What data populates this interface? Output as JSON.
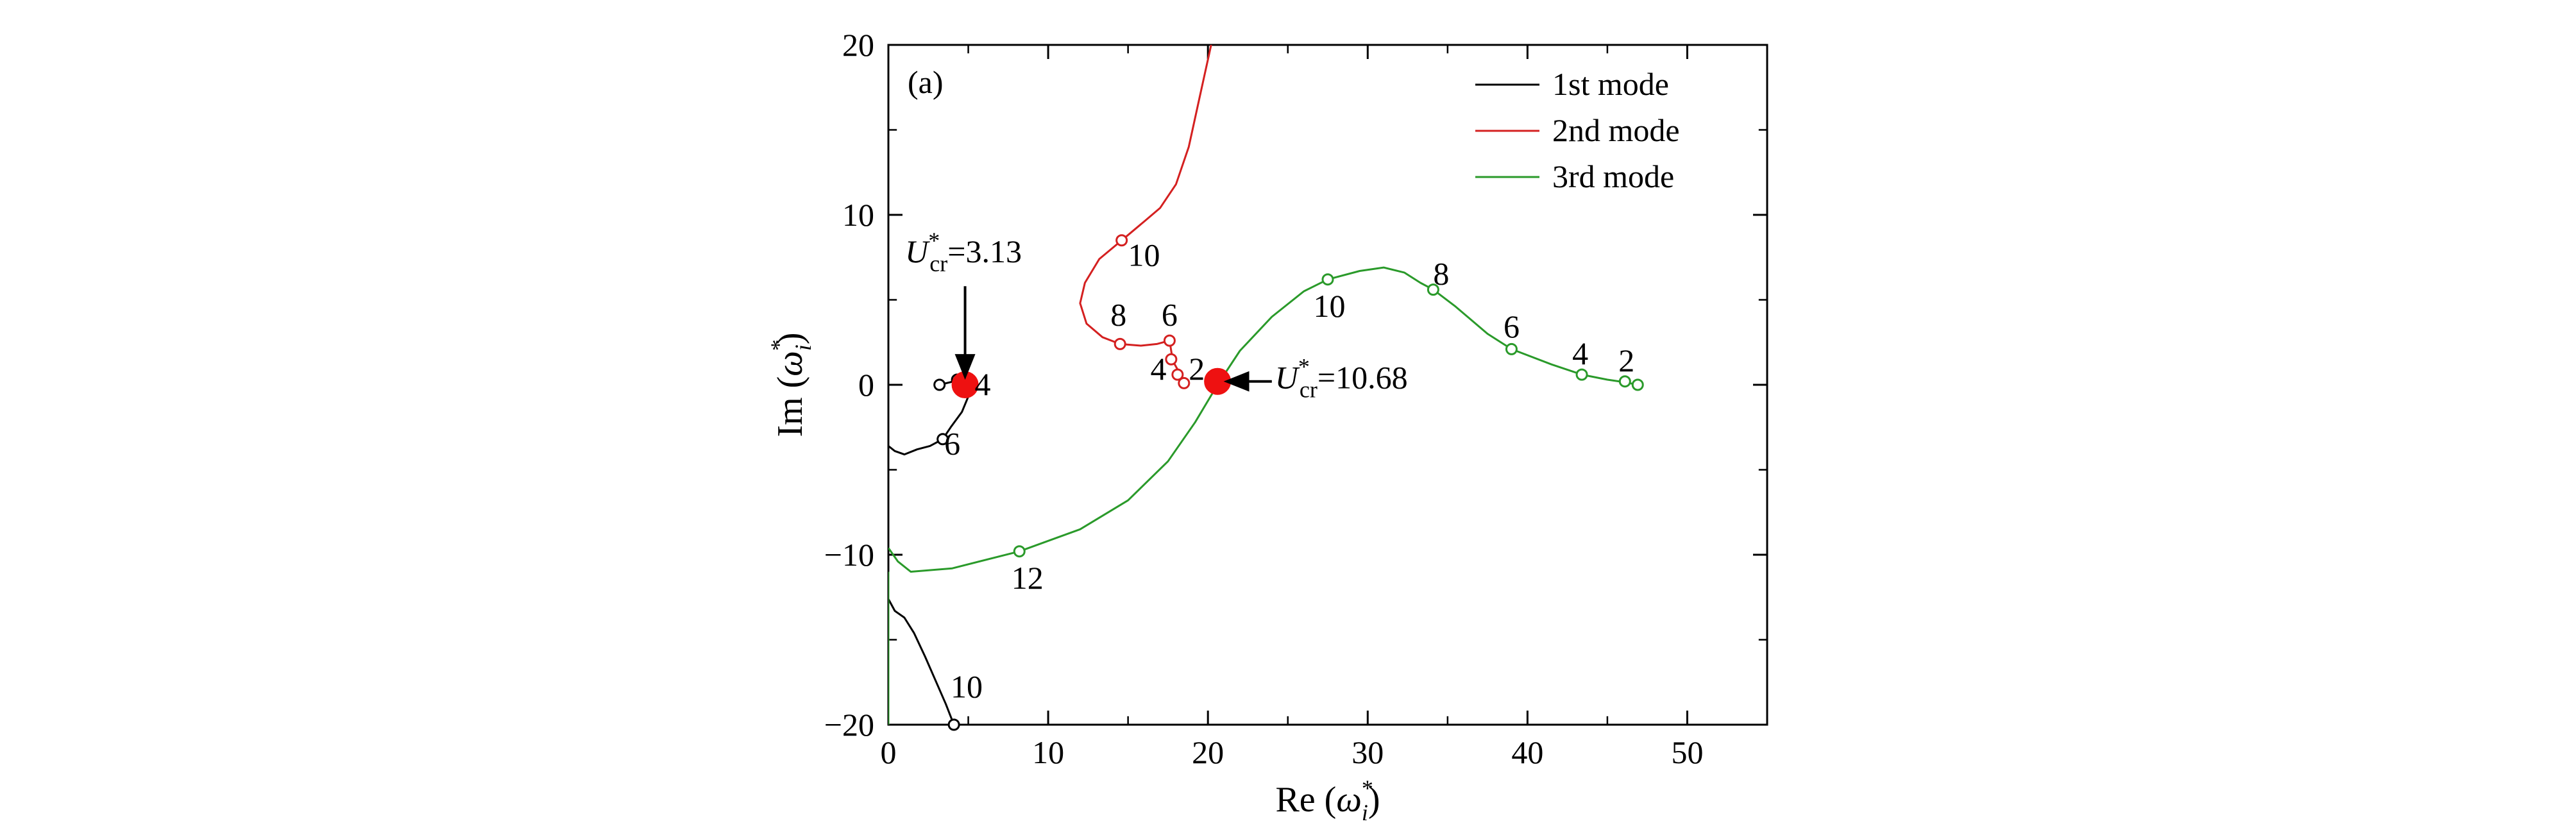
{
  "chart_data": {
    "type": "line",
    "panel_label": "(a)",
    "xlabel": {
      "prefix": "Re (",
      "sym": "ω",
      "sup": "*",
      "sub": "i",
      "suffix": ")"
    },
    "ylabel": {
      "prefix": "Im (",
      "sym": "ω",
      "sup": "*",
      "sub": "i",
      "suffix": ")"
    },
    "xlim": [
      0,
      55
    ],
    "ylim": [
      -20,
      20
    ],
    "xticks": [
      0,
      10,
      20,
      30,
      40,
      50
    ],
    "yticks": [
      -20,
      -10,
      0,
      10,
      20
    ],
    "xtick_labels": [
      "0",
      "10",
      "20",
      "30",
      "40",
      "50"
    ],
    "ytick_labels": [
      "−20",
      "−10",
      "0",
      "10",
      "20"
    ],
    "legend_position": "top-right",
    "series": [
      {
        "name": "1st mode",
        "color": "#000000",
        "segments": [
          [
            [
              3.2,
              0.0
            ],
            [
              4.3,
              0.25
            ],
            [
              4.8,
              0.1
            ],
            [
              5.0,
              -0.7
            ],
            [
              4.6,
              -1.6
            ],
            [
              3.9,
              -2.5
            ],
            [
              3.4,
              -3.2
            ],
            [
              2.6,
              -3.6
            ],
            [
              1.8,
              -3.8
            ],
            [
              1.0,
              -4.1
            ],
            [
              0.4,
              -3.9
            ],
            [
              0.0,
              -3.6
            ]
          ],
          [
            [
              0.0,
              -12.6
            ],
            [
              0.4,
              -13.3
            ],
            [
              1.0,
              -13.7
            ],
            [
              1.6,
              -14.6
            ],
            [
              2.3,
              -16.0
            ],
            [
              3.0,
              -17.5
            ],
            [
              3.6,
              -18.8
            ],
            [
              4.1,
              -20.0
            ],
            [
              5.5,
              -20.0
            ]
          ]
        ],
        "markers": [
          [
            3.2,
            0.0
          ],
          [
            4.3,
            0.3
          ],
          [
            3.4,
            -3.2
          ],
          [
            4.1,
            -20.0
          ]
        ]
      },
      {
        "name": "2nd mode",
        "color": "#d42020",
        "segments": [
          [
            [
              20.2,
              20.0
            ],
            [
              19.5,
              17.0
            ],
            [
              18.8,
              14.0
            ],
            [
              18.0,
              11.8
            ],
            [
              17.0,
              10.4
            ],
            [
              16.0,
              9.6
            ],
            [
              14.6,
              8.5
            ],
            [
              13.2,
              7.4
            ],
            [
              12.3,
              6.0
            ],
            [
              12.0,
              4.8
            ],
            [
              12.4,
              3.6
            ],
            [
              13.4,
              2.8
            ],
            [
              14.5,
              2.4
            ],
            [
              15.8,
              2.3
            ],
            [
              16.8,
              2.4
            ],
            [
              17.6,
              2.6
            ],
            [
              17.8,
              1.4
            ],
            [
              18.1,
              0.9
            ],
            [
              18.3,
              0.5
            ],
            [
              18.5,
              0.1
            ]
          ]
        ],
        "markers": [
          [
            14.6,
            8.5
          ],
          [
            14.5,
            2.4
          ],
          [
            17.6,
            2.6
          ],
          [
            17.7,
            1.5
          ],
          [
            18.1,
            0.6
          ],
          [
            18.5,
            0.1
          ]
        ]
      },
      {
        "name": "3rd mode",
        "color": "#2a9a2a",
        "segments": [
          [
            [
              0.0,
              -9.6
            ],
            [
              0.6,
              -10.4
            ],
            [
              1.4,
              -11.0
            ],
            [
              4.0,
              -10.8
            ],
            [
              8.2,
              -9.8
            ],
            [
              12.0,
              -8.5
            ],
            [
              15.0,
              -6.8
            ],
            [
              17.5,
              -4.5
            ],
            [
              19.2,
              -2.2
            ],
            [
              20.6,
              0.0
            ],
            [
              22.0,
              2.0
            ],
            [
              24.0,
              4.0
            ],
            [
              26.0,
              5.5
            ],
            [
              27.5,
              6.2
            ],
            [
              29.5,
              6.7
            ],
            [
              31.0,
              6.9
            ],
            [
              32.3,
              6.6
            ],
            [
              33.3,
              6.0
            ],
            [
              34.1,
              5.6
            ],
            [
              35.5,
              4.6
            ],
            [
              37.5,
              3.0
            ],
            [
              39.0,
              2.1
            ],
            [
              41.5,
              1.2
            ],
            [
              43.4,
              0.6
            ],
            [
              45.0,
              0.3
            ],
            [
              46.1,
              0.15
            ],
            [
              46.9,
              0.0
            ]
          ],
          [
            [
              0.0,
              -11.0
            ],
            [
              0.0,
              -20.0
            ]
          ]
        ],
        "markers": [
          [
            8.2,
            -9.8
          ],
          [
            27.5,
            6.2
          ],
          [
            34.1,
            5.6
          ],
          [
            39.0,
            2.1
          ],
          [
            43.4,
            0.6
          ],
          [
            46.1,
            0.2
          ],
          [
            46.9,
            0.0
          ]
        ]
      }
    ],
    "critical_points": [
      [
        4.8,
        0.0
      ],
      [
        20.6,
        0.2
      ]
    ],
    "point_labels": [
      {
        "text": "6",
        "x": 4.0,
        "y": -4.1
      },
      {
        "text": "4",
        "x": 5.9,
        "y": -0.6
      },
      {
        "text": "10",
        "x": 4.9,
        "y": -18.4
      },
      {
        "text": "10",
        "x": 16.0,
        "y": 7.0
      },
      {
        "text": "8",
        "x": 14.4,
        "y": 3.5
      },
      {
        "text": "6",
        "x": 17.6,
        "y": 3.5
      },
      {
        "text": "4",
        "x": 16.9,
        "y": 0.3
      },
      {
        "text": "2",
        "x": 19.3,
        "y": 0.3
      },
      {
        "text": "12",
        "x": 8.7,
        "y": -12.0
      },
      {
        "text": "10",
        "x": 27.6,
        "y": 4.0
      },
      {
        "text": "8",
        "x": 34.6,
        "y": 5.9
      },
      {
        "text": "6",
        "x": 39.0,
        "y": 2.8
      },
      {
        "text": "4",
        "x": 43.3,
        "y": 1.2
      },
      {
        "text": "2",
        "x": 46.2,
        "y": 0.8
      }
    ],
    "annotations": [
      {
        "text": "=3.13",
        "x": 4.7,
        "y": 7.2,
        "anchor": "middle",
        "arrow_from": [
          4.8,
          5.8
        ],
        "arrow_to": [
          4.8,
          0.6
        ]
      },
      {
        "text": "=10.68",
        "x": 24.2,
        "y": -0.2,
        "anchor": "start",
        "arrow_from": [
          24.0,
          0.2
        ],
        "arrow_to": [
          21.3,
          0.2
        ]
      }
    ],
    "annotation_symbol": {
      "base": "U",
      "sup": "*",
      "sub": "cr"
    }
  }
}
